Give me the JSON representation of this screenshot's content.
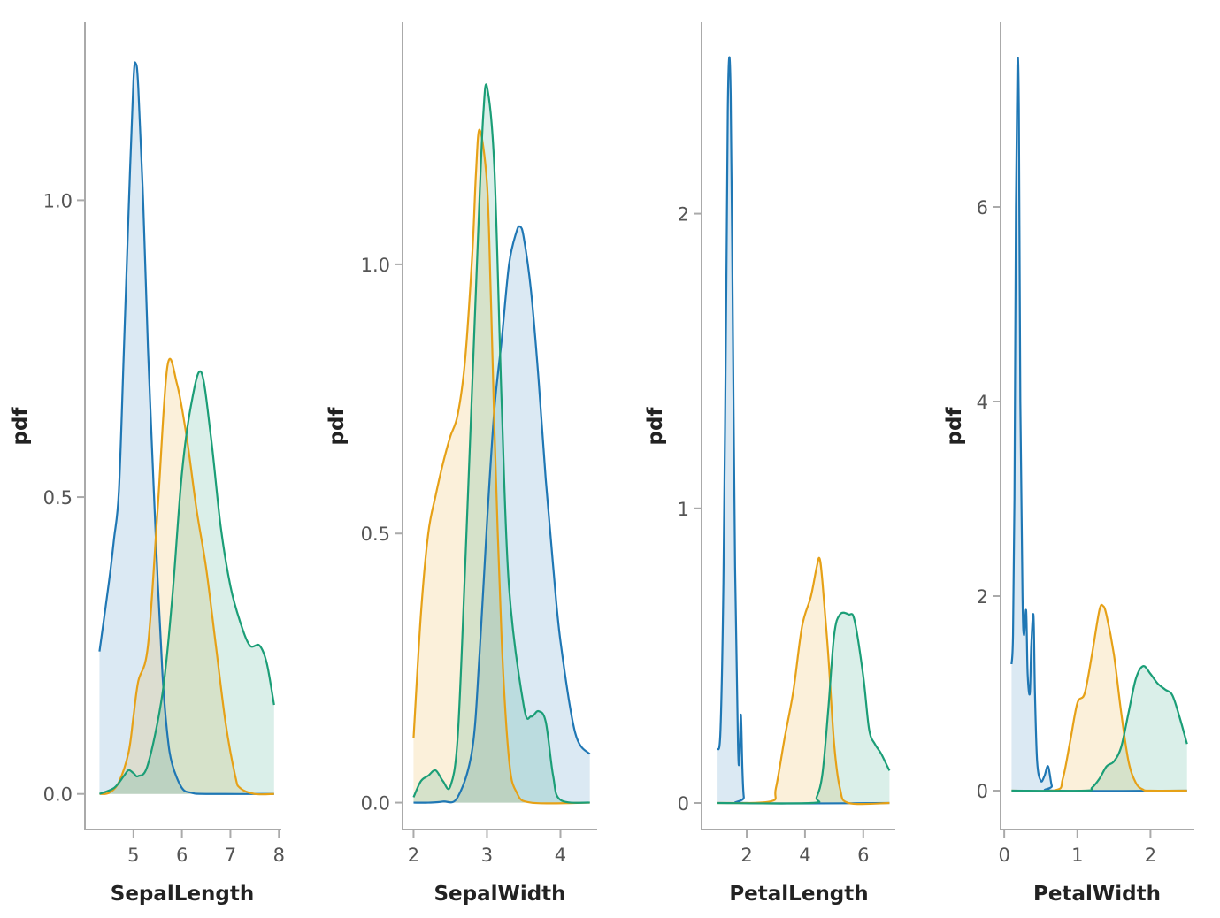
{
  "chart_data": [
    {
      "type": "area",
      "xlabel": "SepalLength",
      "ylabel": "pdf",
      "xlim": [
        4.0,
        8.05
      ],
      "ylim": [
        -0.06,
        1.3
      ],
      "xticks": [
        5,
        6,
        7,
        8
      ],
      "xtick_labels": [
        "5",
        "6",
        "7",
        "8"
      ],
      "yticks": [
        0.0,
        0.5,
        1.0
      ],
      "ytick_labels": [
        "0.0",
        "0.5",
        "1.0"
      ],
      "series": [
        {
          "color": "#1f77b4",
          "fill": "#1f77b4",
          "x": [
            4.3,
            4.5,
            4.6,
            4.7,
            4.8,
            4.9,
            5.0,
            5.05,
            5.1,
            5.2,
            5.3,
            5.4,
            5.5,
            5.6,
            5.7,
            5.8,
            6.0,
            6.2,
            6.5,
            7.9
          ],
          "y": [
            0.24,
            0.36,
            0.43,
            0.51,
            0.74,
            0.98,
            1.2,
            1.23,
            1.19,
            1.0,
            0.75,
            0.55,
            0.36,
            0.2,
            0.1,
            0.05,
            0.01,
            0.002,
            0.0,
            0.0
          ]
        },
        {
          "color": "#e6a117",
          "fill": "#e6a117",
          "x": [
            4.3,
            4.5,
            4.7,
            4.9,
            5.0,
            5.1,
            5.3,
            5.5,
            5.7,
            5.9,
            6.1,
            6.3,
            6.5,
            6.7,
            6.9,
            7.1,
            7.2,
            7.5,
            7.9
          ],
          "y": [
            0.0,
            0.002,
            0.02,
            0.07,
            0.13,
            0.19,
            0.25,
            0.48,
            0.72,
            0.69,
            0.6,
            0.48,
            0.38,
            0.25,
            0.12,
            0.03,
            0.01,
            0.0,
            0.0
          ]
        },
        {
          "color": "#1b9e77",
          "fill": "#1b9e77",
          "x": [
            4.3,
            4.6,
            4.8,
            4.9,
            5.0,
            5.1,
            5.3,
            5.6,
            5.8,
            6.0,
            6.2,
            6.4,
            6.6,
            6.8,
            7.0,
            7.2,
            7.4,
            7.6,
            7.75,
            7.9
          ],
          "y": [
            0.0,
            0.01,
            0.03,
            0.04,
            0.035,
            0.03,
            0.05,
            0.17,
            0.33,
            0.54,
            0.66,
            0.71,
            0.6,
            0.45,
            0.35,
            0.29,
            0.25,
            0.25,
            0.22,
            0.15
          ]
        }
      ]
    },
    {
      "type": "area",
      "xlabel": "SepalWidth",
      "ylabel": "pdf",
      "xlim": [
        1.85,
        4.5
      ],
      "ylim": [
        -0.05,
        1.45
      ],
      "xticks": [
        2,
        3,
        4
      ],
      "xtick_labels": [
        "2",
        "3",
        "4"
      ],
      "yticks": [
        0.0,
        0.5,
        1.0
      ],
      "ytick_labels": [
        "0.0",
        "0.5",
        "1.0"
      ],
      "series": [
        {
          "color": "#1f77b4",
          "fill": "#1f77b4",
          "x": [
            2.0,
            2.2,
            2.4,
            2.6,
            2.8,
            2.9,
            3.0,
            3.1,
            3.2,
            3.3,
            3.4,
            3.45,
            3.5,
            3.6,
            3.7,
            3.8,
            3.9,
            4.0,
            4.2,
            4.4
          ],
          "y": [
            0.0,
            0.0,
            0.002,
            0.01,
            0.1,
            0.28,
            0.52,
            0.73,
            0.86,
            1.0,
            1.06,
            1.07,
            1.05,
            0.95,
            0.79,
            0.6,
            0.44,
            0.3,
            0.13,
            0.09
          ]
        },
        {
          "color": "#e6a117",
          "fill": "#e6a117",
          "x": [
            2.0,
            2.1,
            2.2,
            2.3,
            2.4,
            2.5,
            2.6,
            2.7,
            2.8,
            2.85,
            2.9,
            3.0,
            3.05,
            3.1,
            3.2,
            3.3,
            3.4,
            3.6,
            4.4
          ],
          "y": [
            0.12,
            0.35,
            0.5,
            0.57,
            0.63,
            0.68,
            0.72,
            0.82,
            1.02,
            1.17,
            1.25,
            1.15,
            0.95,
            0.7,
            0.3,
            0.08,
            0.02,
            0.0,
            0.0
          ]
        },
        {
          "color": "#1b9e77",
          "fill": "#1b9e77",
          "x": [
            2.0,
            2.1,
            2.2,
            2.3,
            2.4,
            2.5,
            2.6,
            2.7,
            2.8,
            2.9,
            2.95,
            3.0,
            3.1,
            3.2,
            3.3,
            3.5,
            3.6,
            3.7,
            3.8,
            3.9,
            4.0,
            4.4
          ],
          "y": [
            0.01,
            0.04,
            0.05,
            0.06,
            0.04,
            0.03,
            0.12,
            0.43,
            0.78,
            1.13,
            1.28,
            1.33,
            1.18,
            0.74,
            0.4,
            0.18,
            0.16,
            0.17,
            0.15,
            0.05,
            0.005,
            0.0
          ]
        }
      ]
    },
    {
      "type": "area",
      "xlabel": "PetalLength",
      "ylabel": "pdf",
      "xlim": [
        0.45,
        7.1
      ],
      "ylim": [
        -0.09,
        2.65
      ],
      "xticks": [
        2,
        4,
        6
      ],
      "xtick_labels": [
        "2",
        "4",
        "6"
      ],
      "yticks": [
        0,
        1,
        2
      ],
      "ytick_labels": [
        "0",
        "1",
        "2"
      ],
      "series": [
        {
          "color": "#1f77b4",
          "fill": "#1f77b4",
          "x": [
            1.0,
            1.1,
            1.2,
            1.3,
            1.35,
            1.4,
            1.45,
            1.5,
            1.6,
            1.7,
            1.75,
            1.8,
            1.85,
            1.9,
            2.0,
            6.9
          ],
          "y": [
            0.18,
            0.25,
            0.75,
            1.75,
            2.35,
            2.53,
            2.4,
            1.9,
            0.8,
            0.2,
            0.15,
            0.3,
            0.12,
            0.02,
            0.0,
            0.0
          ]
        },
        {
          "color": "#e6a117",
          "fill": "#e6a117",
          "x": [
            1.0,
            2.8,
            3.0,
            3.3,
            3.6,
            3.9,
            4.2,
            4.4,
            4.5,
            4.6,
            4.8,
            5.0,
            5.2,
            5.5,
            6.9
          ],
          "y": [
            0.0,
            0.005,
            0.05,
            0.22,
            0.38,
            0.6,
            0.7,
            0.8,
            0.83,
            0.75,
            0.5,
            0.2,
            0.05,
            0.0,
            0.0
          ]
        },
        {
          "color": "#1b9e77",
          "fill": "#1b9e77",
          "x": [
            1.0,
            4.2,
            4.4,
            4.6,
            4.8,
            5.0,
            5.2,
            5.5,
            5.7,
            6.0,
            6.2,
            6.4,
            6.6,
            6.8,
            6.9
          ],
          "y": [
            0.0,
            0.0,
            0.02,
            0.1,
            0.32,
            0.57,
            0.64,
            0.64,
            0.62,
            0.43,
            0.25,
            0.2,
            0.17,
            0.13,
            0.11
          ]
        }
      ]
    },
    {
      "type": "area",
      "xlabel": "PetalWidth",
      "ylabel": "pdf",
      "xlim": [
        -0.05,
        2.6
      ],
      "ylim": [
        -0.4,
        7.9
      ],
      "xticks": [
        0,
        1,
        2
      ],
      "xtick_labels": [
        "0",
        "1",
        "2"
      ],
      "yticks": [
        0,
        2,
        4,
        6
      ],
      "ytick_labels": [
        "0",
        "2",
        "4",
        "6"
      ],
      "series": [
        {
          "color": "#1f77b4",
          "fill": "#1f77b4",
          "x": [
            0.1,
            0.12,
            0.14,
            0.16,
            0.18,
            0.2,
            0.22,
            0.25,
            0.27,
            0.3,
            0.32,
            0.35,
            0.37,
            0.4,
            0.42,
            0.45,
            0.5,
            0.55,
            0.6,
            0.65,
            0.7,
            2.5
          ],
          "y": [
            1.3,
            1.6,
            3.0,
            6.0,
            7.45,
            7.0,
            4.0,
            2.0,
            1.6,
            1.85,
            1.2,
            1.0,
            1.5,
            1.8,
            1.0,
            0.3,
            0.1,
            0.15,
            0.25,
            0.05,
            0.0,
            0.0
          ]
        },
        {
          "color": "#e6a117",
          "fill": "#e6a117",
          "x": [
            0.1,
            0.7,
            0.8,
            0.9,
            1.0,
            1.1,
            1.2,
            1.3,
            1.35,
            1.4,
            1.5,
            1.6,
            1.7,
            1.8,
            1.9,
            2.0,
            2.5
          ],
          "y": [
            0.0,
            0.005,
            0.12,
            0.5,
            0.9,
            1.0,
            1.4,
            1.85,
            1.9,
            1.8,
            1.4,
            0.8,
            0.3,
            0.08,
            0.01,
            0.0,
            0.0
          ]
        },
        {
          "color": "#1b9e77",
          "fill": "#1b9e77",
          "x": [
            0.1,
            1.1,
            1.2,
            1.3,
            1.4,
            1.5,
            1.6,
            1.7,
            1.8,
            1.9,
            2.0,
            2.1,
            2.2,
            2.3,
            2.4,
            2.5
          ],
          "y": [
            0.0,
            0.0,
            0.03,
            0.12,
            0.25,
            0.3,
            0.45,
            0.8,
            1.15,
            1.28,
            1.2,
            1.1,
            1.04,
            0.98,
            0.75,
            0.48
          ]
        }
      ]
    }
  ]
}
